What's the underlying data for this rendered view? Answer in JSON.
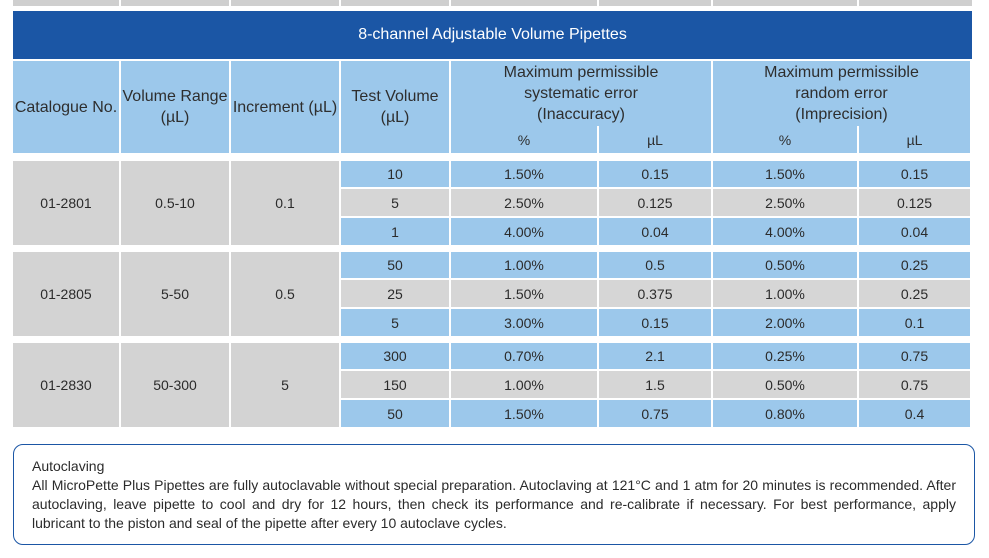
{
  "title": "8-channel Adjustable Volume Pipettes",
  "headers": {
    "catalogue": "Catalogue No.",
    "volume_range": "Volume Range (µL)",
    "increment": "Increment (µL)",
    "test_volume": "Test Volume (µL)",
    "systematic": "Maximum permissible systematic error (Inaccuracy)",
    "random": "Maximum permissible random error (Imprecision)",
    "pct": "%",
    "ul": "µL"
  },
  "groups": [
    {
      "catalogue": "01-2801",
      "range": "0.5-10",
      "increment": "0.1",
      "rows": [
        {
          "test": "10",
          "sys_pct": "1.50%",
          "sys_ul": "0.15",
          "rnd_pct": "1.50%",
          "rnd_ul": "0.15"
        },
        {
          "test": "5",
          "sys_pct": "2.50%",
          "sys_ul": "0.125",
          "rnd_pct": "2.50%",
          "rnd_ul": "0.125"
        },
        {
          "test": "1",
          "sys_pct": "4.00%",
          "sys_ul": "0.04",
          "rnd_pct": "4.00%",
          "rnd_ul": "0.04"
        }
      ]
    },
    {
      "catalogue": "01-2805",
      "range": "5-50",
      "increment": "0.5",
      "rows": [
        {
          "test": "50",
          "sys_pct": "1.00%",
          "sys_ul": "0.5",
          "rnd_pct": "0.50%",
          "rnd_ul": "0.25"
        },
        {
          "test": "25",
          "sys_pct": "1.50%",
          "sys_ul": "0.375",
          "rnd_pct": "1.00%",
          "rnd_ul": "0.25"
        },
        {
          "test": "5",
          "sys_pct": "3.00%",
          "sys_ul": "0.15",
          "rnd_pct": "2.00%",
          "rnd_ul": "0.1"
        }
      ]
    },
    {
      "catalogue": "01-2830",
      "range": "50-300",
      "increment": "5",
      "rows": [
        {
          "test": "300",
          "sys_pct": "0.70%",
          "sys_ul": "2.1",
          "rnd_pct": "0.25%",
          "rnd_ul": "0.75"
        },
        {
          "test": "150",
          "sys_pct": "1.00%",
          "sys_ul": "1.5",
          "rnd_pct": "0.50%",
          "rnd_ul": "0.75"
        },
        {
          "test": "50",
          "sys_pct": "1.50%",
          "sys_ul": "0.75",
          "rnd_pct": "0.80%",
          "rnd_ul": "0.4"
        }
      ]
    }
  ],
  "note": {
    "title": "Autoclaving",
    "text": "All MicroPette Plus Pipettes are fully autoclavable without special preparation.  Autoclaving at 121°C and 1 atm for 20 minutes is recommended.  After autoclaving, leave pipette to cool and dry for 12 hours, then check its performance and re-calibrate if necessary.  For best performance, apply lubricant to the piston and seal of the pipette after every 10 autoclave cycles."
  }
}
